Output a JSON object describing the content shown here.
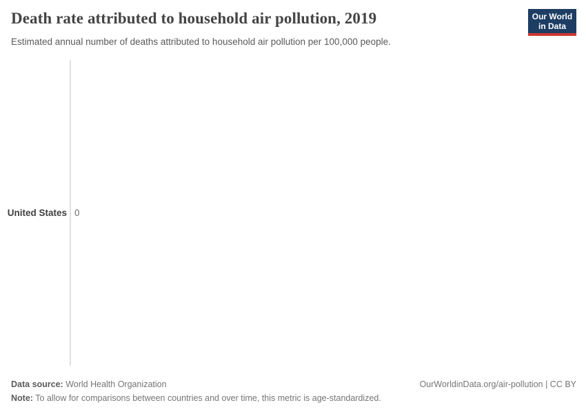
{
  "header": {
    "title": "Death rate attributed to household air pollution, 2019",
    "subtitle": "Estimated annual number of deaths attributed to household air pollution per 100,000 people.",
    "logo": {
      "line1": "Our World",
      "line2": "in Data"
    }
  },
  "chart_data": {
    "type": "bar",
    "orientation": "horizontal",
    "title": "Death rate attributed to household air pollution, 2019",
    "subtitle": "Estimated annual number of deaths attributed to household air pollution per 100,000 people.",
    "categories": [
      "United States"
    ],
    "values": [
      0
    ],
    "value_labels": [
      "0"
    ],
    "xlabel": "",
    "ylabel": "",
    "grid": false,
    "legend": false,
    "axis_note": "single vertical baseline at value 0, no tick marks or gridlines"
  },
  "footer": {
    "data_source_label": "Data source:",
    "data_source_value": " World Health Organization",
    "note_label": "Note:",
    "note_value": " To allow for comparisons between countries and over time, this metric is age-standardized.",
    "link": "OurWorldinData.org/air-pollution | CC BY"
  },
  "colors": {
    "logo_background": "#1d3d63",
    "logo_underline": "#cf3731",
    "title_text": "#444444",
    "subtitle_text": "#595959",
    "entity_label_text": "#3f3f3f",
    "value_text": "#6e6e6e",
    "axis_line": "#e0e0e0",
    "footer_text": "#757575",
    "background": "#ffffff"
  }
}
